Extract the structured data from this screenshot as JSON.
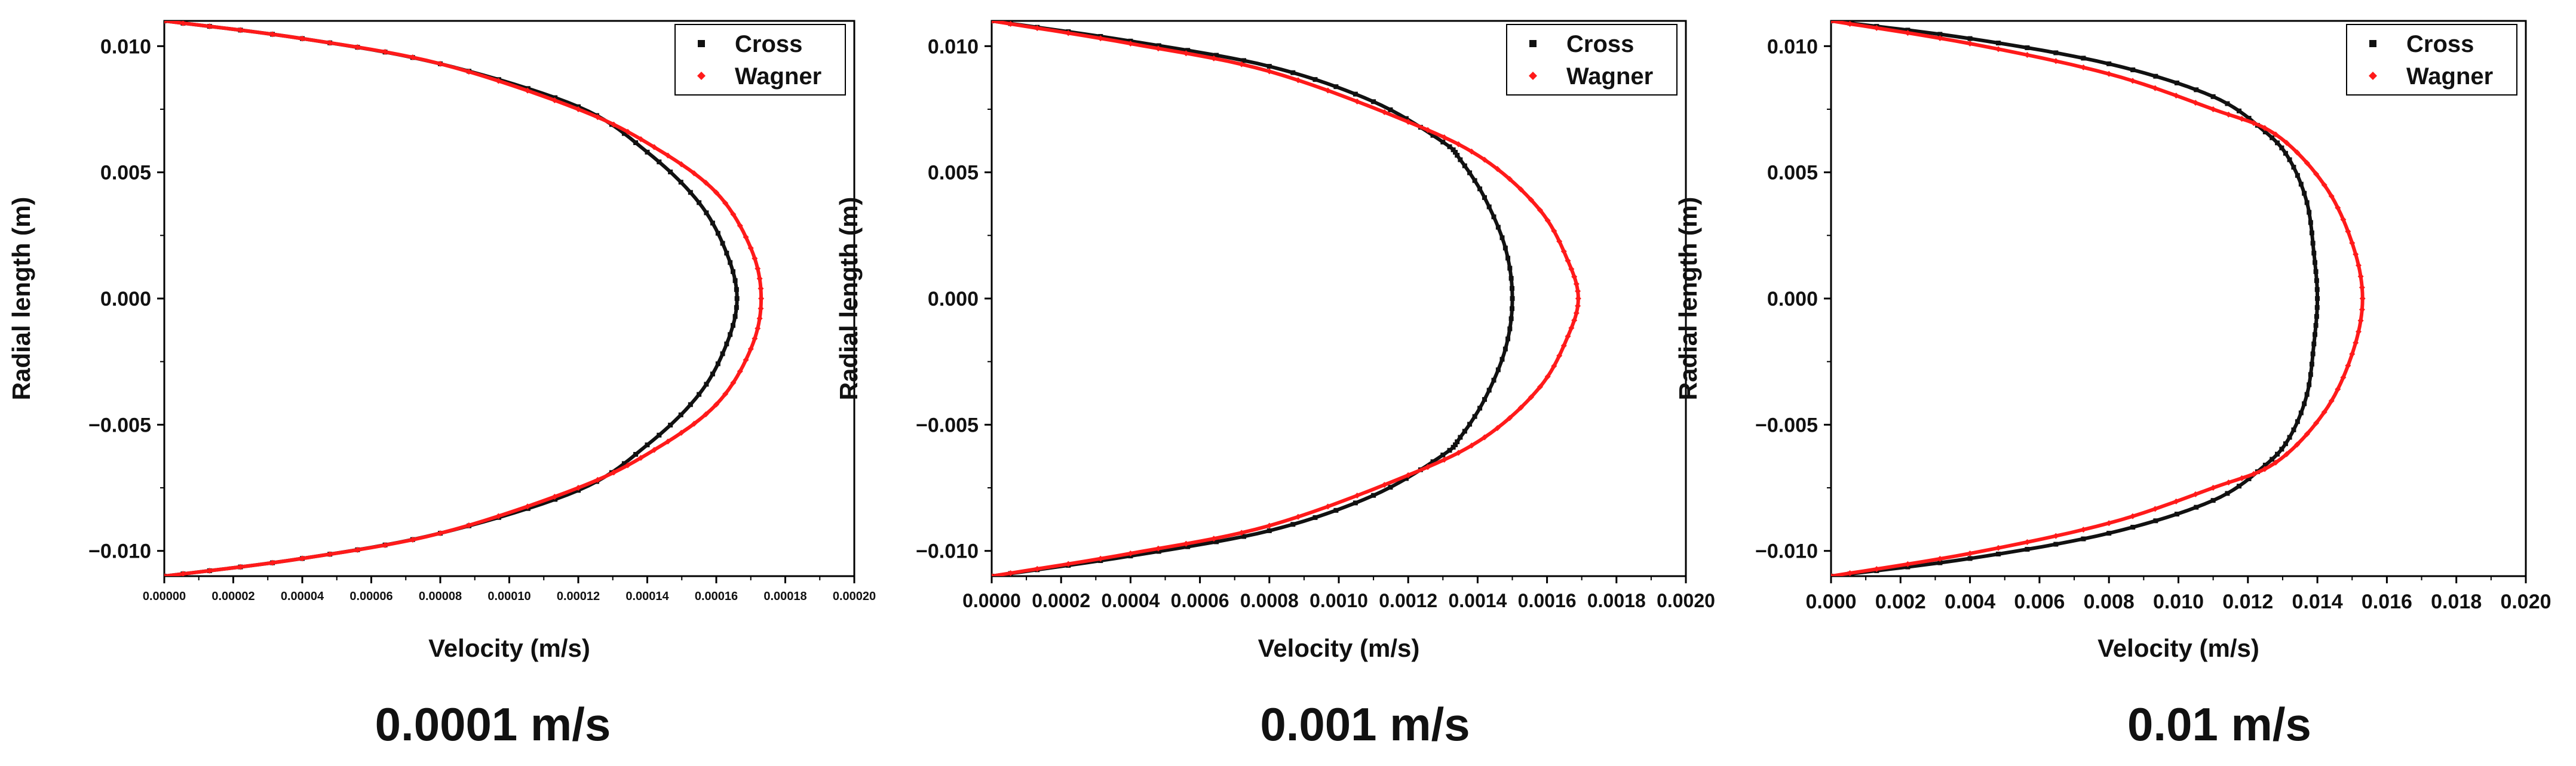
{
  "colors": {
    "cross": "#111111",
    "wagner": "#ff1a1a",
    "frame": "#000000"
  },
  "captions": [
    "0.0001 m/s",
    "0.001 m/s",
    "0.01 m/s"
  ],
  "chart_data": [
    {
      "type": "line",
      "xlabel": "Velocity (m/s)",
      "ylabel": "Radial length (m)",
      "xlim": [
        0,
        0.0002
      ],
      "ylim": [
        -0.011,
        0.011
      ],
      "x_ticks": [
        "0.00000",
        "0.00002",
        "0.00004",
        "0.00006",
        "0.00008",
        "0.00010",
        "0.00012",
        "0.00014",
        "0.00016",
        "0.00018",
        "0.00020"
      ],
      "y_ticks": [
        "-0.010",
        "-0.005",
        "0.000",
        "0.005",
        "0.010"
      ],
      "legend": "top-right",
      "series": [
        {
          "name": "Cross",
          "marker": "square",
          "points": [
            [
              0.0,
              -0.011
            ],
            [
              4e-05,
              -0.0103
            ],
            [
              8e-05,
              -0.0093
            ],
            [
              0.00012,
              -0.0076
            ],
            [
              0.00014,
              -0.0058
            ],
            [
              0.000155,
              -0.0038
            ],
            [
              0.000163,
              -0.0018
            ],
            [
              0.000166,
              0.0
            ],
            [
              0.000163,
              0.0018
            ],
            [
              0.000155,
              0.0038
            ],
            [
              0.00014,
              0.0058
            ],
            [
              0.00012,
              0.0076
            ],
            [
              8e-05,
              0.0093
            ],
            [
              4e-05,
              0.0103
            ],
            [
              0.0,
              0.011
            ]
          ]
        },
        {
          "name": "Wagner",
          "marker": "diamond",
          "points": [
            [
              0.0,
              -0.011
            ],
            [
              4e-05,
              -0.0103
            ],
            [
              8e-05,
              -0.0093
            ],
            [
              0.00012,
              -0.0075
            ],
            [
              0.000142,
              -0.006
            ],
            [
              0.00016,
              -0.0042
            ],
            [
              0.00017,
              -0.002
            ],
            [
              0.000173,
              0.0
            ],
            [
              0.00017,
              0.002
            ],
            [
              0.00016,
              0.0042
            ],
            [
              0.000142,
              0.006
            ],
            [
              0.00012,
              0.0075
            ],
            [
              8e-05,
              0.0093
            ],
            [
              4e-05,
              0.0103
            ],
            [
              0.0,
              0.011
            ]
          ]
        }
      ]
    },
    {
      "type": "line",
      "xlabel": "Velocity (m/s)",
      "ylabel": "Radial length (m)",
      "xlim": [
        0,
        0.002
      ],
      "ylim": [
        -0.011,
        0.011
      ],
      "x_ticks": [
        "0.0000",
        "0.0002",
        "0.0004",
        "0.0006",
        "0.0008",
        "0.0010",
        "0.0012",
        "0.0014",
        "0.0016",
        "0.0018",
        "0.0020"
      ],
      "y_ticks": [
        "-0.010",
        "-0.005",
        "0.000",
        "0.005",
        "0.010"
      ],
      "legend": "top-right",
      "series": [
        {
          "name": "Cross",
          "marker": "square",
          "points": [
            [
              0.0,
              -0.011
            ],
            [
              0.0004,
              -0.0102
            ],
            [
              0.0008,
              -0.0092
            ],
            [
              0.0011,
              -0.0078
            ],
            [
              0.0013,
              -0.0062
            ],
            [
              0.00135,
              -0.0055
            ],
            [
              0.00142,
              -0.004
            ],
            [
              0.00148,
              -0.002
            ],
            [
              0.0015,
              0.0
            ],
            [
              0.00148,
              0.002
            ],
            [
              0.00142,
              0.004
            ],
            [
              0.00135,
              0.0055
            ],
            [
              0.0013,
              0.0062
            ],
            [
              0.0011,
              0.0078
            ],
            [
              0.0008,
              0.0092
            ],
            [
              0.0004,
              0.0102
            ],
            [
              0.0,
              0.011
            ]
          ]
        },
        {
          "name": "Wagner",
          "marker": "diamond",
          "points": [
            [
              0.0,
              -0.011
            ],
            [
              0.0004,
              -0.0101
            ],
            [
              0.0008,
              -0.009
            ],
            [
              0.0012,
              -0.007
            ],
            [
              0.00142,
              -0.0055
            ],
            [
              0.00158,
              -0.0035
            ],
            [
              0.00166,
              -0.0015
            ],
            [
              0.00169,
              0.0
            ],
            [
              0.00166,
              0.0015
            ],
            [
              0.00158,
              0.0035
            ],
            [
              0.00142,
              0.0055
            ],
            [
              0.0012,
              0.007
            ],
            [
              0.0008,
              0.009
            ],
            [
              0.0004,
              0.0101
            ],
            [
              0.0,
              0.011
            ]
          ]
        }
      ]
    },
    {
      "type": "line",
      "xlabel": "Velocity (m/s)",
      "ylabel": "Radial length (m)",
      "xlim": [
        0,
        0.02
      ],
      "ylim": [
        -0.011,
        0.011
      ],
      "x_ticks": [
        "0.000",
        "0.002",
        "0.004",
        "0.006",
        "0.008",
        "0.010",
        "0.012",
        "0.014",
        "0.016",
        "0.018",
        "0.020"
      ],
      "y_ticks": [
        "-0.010",
        "-0.005",
        "0.000",
        "0.005",
        "0.010"
      ],
      "legend": "top-right",
      "series": [
        {
          "name": "Cross",
          "marker": "square",
          "points": [
            [
              0.0,
              -0.011
            ],
            [
              0.004,
              -0.0103
            ],
            [
              0.008,
              -0.0093
            ],
            [
              0.011,
              -0.008
            ],
            [
              0.0125,
              -0.0066
            ],
            [
              0.0132,
              -0.0055
            ],
            [
              0.0137,
              -0.0038
            ],
            [
              0.0139,
              -0.0018
            ],
            [
              0.014,
              0.0
            ],
            [
              0.0139,
              0.0018
            ],
            [
              0.0137,
              0.0038
            ],
            [
              0.0132,
              0.0055
            ],
            [
              0.0125,
              0.0066
            ],
            [
              0.011,
              0.008
            ],
            [
              0.008,
              0.0093
            ],
            [
              0.004,
              0.0103
            ],
            [
              0.0,
              0.011
            ]
          ]
        },
        {
          "name": "Wagner",
          "marker": "diamond",
          "points": [
            [
              0.0,
              -0.011
            ],
            [
              0.004,
              -0.0101
            ],
            [
              0.008,
              -0.0089
            ],
            [
              0.011,
              -0.0075
            ],
            [
              0.0128,
              -0.0065
            ],
            [
              0.0142,
              -0.0045
            ],
            [
              0.015,
              -0.0022
            ],
            [
              0.0153,
              0.0
            ],
            [
              0.015,
              0.0022
            ],
            [
              0.0142,
              0.0045
            ],
            [
              0.0128,
              0.0065
            ],
            [
              0.011,
              0.0075
            ],
            [
              0.008,
              0.0089
            ],
            [
              0.004,
              0.0101
            ],
            [
              0.0,
              0.011
            ]
          ]
        }
      ]
    }
  ]
}
